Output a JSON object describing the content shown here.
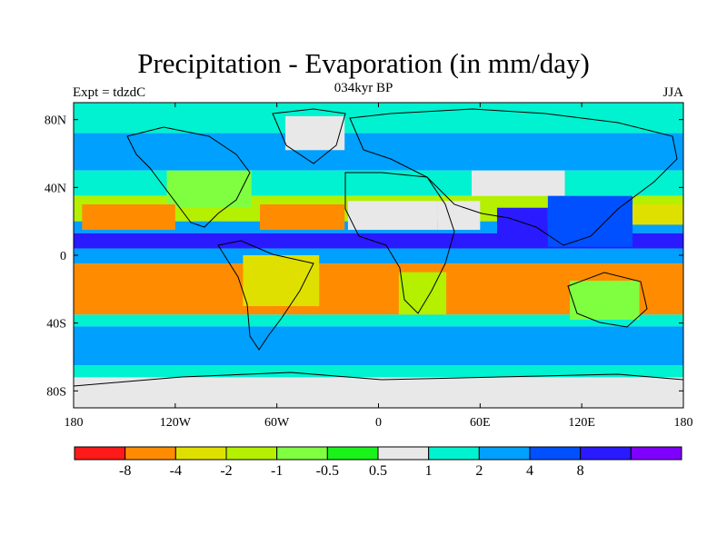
{
  "title": "Precipitation - Evaporation (in mm/day)",
  "subtitle": "034kyr BP",
  "left_label": "Expt = tdzdC",
  "right_label": "JJA",
  "lon_ticks": [
    {
      "lon": -180,
      "label": "180"
    },
    {
      "lon": -120,
      "label": "120W"
    },
    {
      "lon": -60,
      "label": "60W"
    },
    {
      "lon": 0,
      "label": "0"
    },
    {
      "lon": 60,
      "label": "60E"
    },
    {
      "lon": 120,
      "label": "120E"
    },
    {
      "lon": 180,
      "label": "180"
    }
  ],
  "lat_ticks": [
    {
      "lat": 80,
      "label": "80N"
    },
    {
      "lat": 40,
      "label": "40N"
    },
    {
      "lat": 0,
      "label": "0"
    },
    {
      "lat": -40,
      "label": "40S"
    },
    {
      "lat": -80,
      "label": "80S"
    }
  ],
  "colorbar": {
    "colors": [
      "#ff1a1a",
      "#ff8c00",
      "#e0e000",
      "#b4f000",
      "#80ff40",
      "#1af21a",
      "#e8e8e8",
      "#00f2d0",
      "#00a0ff",
      "#0050ff",
      "#2a1aff",
      "#8000ff"
    ],
    "labels": [
      "-8",
      "-4",
      "-2",
      "-1",
      "-0.5",
      "0.5",
      "1",
      "2",
      "4",
      "8"
    ]
  },
  "map_bands": [
    {
      "lat1": 90,
      "lat2": 72,
      "color": "#00f2d0"
    },
    {
      "lat1": 72,
      "lat2": 50,
      "color": "#00a0ff"
    },
    {
      "lat1": 50,
      "lat2": 35,
      "color": "#00f2d0"
    },
    {
      "lat1": 35,
      "lat2": 20,
      "color": "#b4f000"
    },
    {
      "lat1": 20,
      "lat2": 13,
      "color": "#00a0ff"
    },
    {
      "lat1": 13,
      "lat2": 4,
      "color": "#2a1aff"
    },
    {
      "lat1": 4,
      "lat2": -5,
      "color": "#00a0ff"
    },
    {
      "lat1": -5,
      "lat2": -35,
      "color": "#ff8c00"
    },
    {
      "lat1": -35,
      "lat2": -42,
      "color": "#00f2d0"
    },
    {
      "lat1": -42,
      "lat2": -65,
      "color": "#00a0ff"
    },
    {
      "lat1": -65,
      "lat2": -72,
      "color": "#00f2d0"
    },
    {
      "lat1": -72,
      "lat2": -90,
      "color": "#e8e8e8"
    }
  ],
  "map_regions": [
    {
      "name": "sahara",
      "lon1": -18,
      "lon2": 35,
      "lat1": 32,
      "lat2": 15,
      "color": "#e8e8e8"
    },
    {
      "name": "arabia",
      "lon1": 35,
      "lon2": 60,
      "lat1": 32,
      "lat2": 15,
      "color": "#e8e8e8"
    },
    {
      "name": "central-asia",
      "lon1": 55,
      "lon2": 110,
      "lat1": 50,
      "lat2": 35,
      "color": "#e8e8e8"
    },
    {
      "name": "india-monsoon",
      "lon1": 70,
      "lon2": 100,
      "lat1": 28,
      "lat2": 8,
      "color": "#2a1aff"
    },
    {
      "name": "eastasia",
      "lon1": 100,
      "lon2": 150,
      "lat1": 35,
      "lat2": 5,
      "color": "#0050ff"
    },
    {
      "name": "south-africa",
      "lon1": 12,
      "lon2": 40,
      "lat1": -10,
      "lat2": -35,
      "color": "#b4f000"
    },
    {
      "name": "australia",
      "lon1": 113,
      "lon2": 154,
      "lat1": -15,
      "lat2": -38,
      "color": "#80ff40"
    },
    {
      "name": "south-america",
      "lon1": -80,
      "lon2": -35,
      "lat1": 0,
      "lat2": -30,
      "color": "#e0e000"
    },
    {
      "name": "greenland",
      "lon1": -55,
      "lon2": -20,
      "lat1": 82,
      "lat2": 62,
      "color": "#e8e8e8"
    },
    {
      "name": "north-america",
      "lon1": -125,
      "lon2": -75,
      "lat1": 50,
      "lat2": 28,
      "color": "#80ff40"
    },
    {
      "name": "atlantic-sub",
      "lon1": -70,
      "lon2": -20,
      "lat1": 30,
      "lat2": 15,
      "color": "#ff8c00"
    },
    {
      "name": "pacific-sub",
      "lon1": -175,
      "lon2": -120,
      "lat1": 30,
      "lat2": 15,
      "color": "#ff8c00"
    },
    {
      "name": "pacific-west",
      "lon1": 150,
      "lon2": 180,
      "lat1": 30,
      "lat2": 18,
      "color": "#e0e000"
    }
  ]
}
